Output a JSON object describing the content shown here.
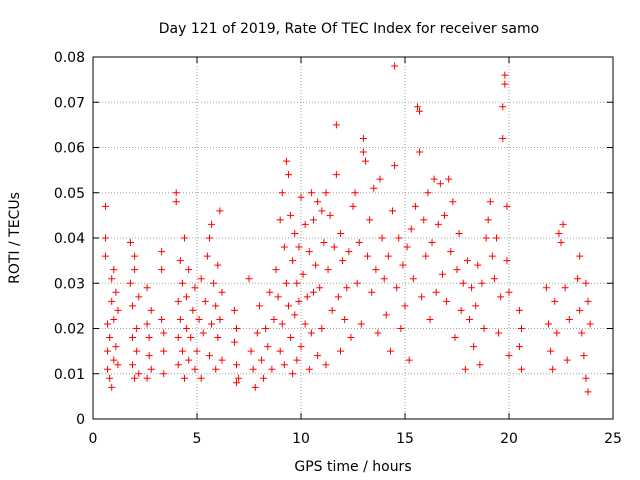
{
  "chart_data": {
    "type": "scatter",
    "title": "Day 121 of 2019, Rate Of TEC Index for receiver samo",
    "xlabel": "GPS time / hours",
    "ylabel": "ROTI / TECUs",
    "xlim": [
      0,
      25
    ],
    "ylim": [
      0,
      0.08
    ],
    "xticks": [
      0,
      5,
      10,
      15,
      20,
      25
    ],
    "xtick_labels": [
      "0",
      "5",
      "10",
      "15",
      "20",
      "25"
    ],
    "yticks": [
      0,
      0.01,
      0.02,
      0.03,
      0.04,
      0.05,
      0.06,
      0.07,
      0.08
    ],
    "ytick_labels": [
      "0",
      "0.01",
      "0.02",
      "0.03",
      "0.04",
      "0.05",
      "0.06",
      "0.07",
      "0.08"
    ],
    "grid": true,
    "marker": "+",
    "color": "#ff0000",
    "series": [
      {
        "name": "ROTI",
        "points": [
          [
            0.6,
            0.047
          ],
          [
            0.6,
            0.04
          ],
          [
            0.6,
            0.036
          ],
          [
            0.7,
            0.021
          ],
          [
            0.7,
            0.015
          ],
          [
            0.7,
            0.011
          ],
          [
            0.8,
            0.009
          ],
          [
            0.8,
            0.018
          ],
          [
            0.9,
            0.026
          ],
          [
            0.9,
            0.031
          ],
          [
            1.0,
            0.033
          ],
          [
            1.0,
            0.022
          ],
          [
            1.0,
            0.013
          ],
          [
            1.1,
            0.016
          ],
          [
            1.1,
            0.028
          ],
          [
            1.2,
            0.024
          ],
          [
            1.2,
            0.012
          ],
          [
            0.9,
            0.007
          ],
          [
            1.8,
            0.039
          ],
          [
            1.8,
            0.03
          ],
          [
            1.9,
            0.025
          ],
          [
            1.9,
            0.018
          ],
          [
            1.9,
            0.012
          ],
          [
            2.0,
            0.009
          ],
          [
            2.0,
            0.036
          ],
          [
            2.1,
            0.02
          ],
          [
            2.1,
            0.015
          ],
          [
            2.2,
            0.027
          ],
          [
            2.2,
            0.01
          ],
          [
            2.0,
            0.033
          ],
          [
            2.6,
            0.029
          ],
          [
            2.6,
            0.021
          ],
          [
            2.7,
            0.018
          ],
          [
            2.7,
            0.014
          ],
          [
            2.8,
            0.011
          ],
          [
            2.8,
            0.024
          ],
          [
            2.6,
            0.009
          ],
          [
            3.3,
            0.022
          ],
          [
            3.3,
            0.037
          ],
          [
            3.4,
            0.015
          ],
          [
            3.4,
            0.01
          ],
          [
            3.3,
            0.033
          ],
          [
            3.4,
            0.019
          ],
          [
            4.0,
            0.05
          ],
          [
            4.0,
            0.048
          ],
          [
            4.1,
            0.026
          ],
          [
            4.1,
            0.018
          ],
          [
            4.1,
            0.012
          ],
          [
            4.2,
            0.035
          ],
          [
            4.2,
            0.022
          ],
          [
            4.3,
            0.03
          ],
          [
            4.3,
            0.015
          ],
          [
            4.4,
            0.04
          ],
          [
            4.4,
            0.009
          ],
          [
            4.5,
            0.027
          ],
          [
            4.5,
            0.02
          ],
          [
            4.6,
            0.033
          ],
          [
            4.6,
            0.013
          ],
          [
            4.7,
            0.018
          ],
          [
            4.8,
            0.024
          ],
          [
            4.9,
            0.011
          ],
          [
            4.9,
            0.029
          ],
          [
            5.0,
            0.015
          ],
          [
            5.1,
            0.022
          ],
          [
            5.2,
            0.031
          ],
          [
            5.2,
            0.009
          ],
          [
            5.3,
            0.019
          ],
          [
            5.4,
            0.026
          ],
          [
            5.5,
            0.036
          ],
          [
            5.6,
            0.04
          ],
          [
            5.6,
            0.014
          ],
          [
            5.7,
            0.043
          ],
          [
            5.7,
            0.021
          ],
          [
            5.8,
            0.03
          ],
          [
            5.9,
            0.025
          ],
          [
            5.9,
            0.011
          ],
          [
            6.0,
            0.034
          ],
          [
            6.0,
            0.018
          ],
          [
            6.1,
            0.046
          ],
          [
            6.1,
            0.022
          ],
          [
            6.2,
            0.013
          ],
          [
            6.2,
            0.028
          ],
          [
            6.8,
            0.024
          ],
          [
            6.8,
            0.017
          ],
          [
            6.9,
            0.012
          ],
          [
            6.9,
            0.02
          ],
          [
            7.0,
            0.009
          ],
          [
            6.9,
            0.008
          ],
          [
            7.5,
            0.031
          ],
          [
            7.6,
            0.015
          ],
          [
            7.7,
            0.011
          ],
          [
            7.8,
            0.007
          ],
          [
            7.9,
            0.019
          ],
          [
            8.0,
            0.025
          ],
          [
            8.1,
            0.013
          ],
          [
            8.2,
            0.009
          ],
          [
            8.3,
            0.02
          ],
          [
            8.4,
            0.016
          ],
          [
            8.5,
            0.028
          ],
          [
            8.6,
            0.011
          ],
          [
            8.7,
            0.022
          ],
          [
            8.8,
            0.033
          ],
          [
            8.9,
            0.027
          ],
          [
            9.0,
            0.044
          ],
          [
            9.0,
            0.015
          ],
          [
            9.1,
            0.05
          ],
          [
            9.1,
            0.021
          ],
          [
            9.2,
            0.038
          ],
          [
            9.2,
            0.012
          ],
          [
            9.3,
            0.057
          ],
          [
            9.3,
            0.03
          ],
          [
            9.4,
            0.054
          ],
          [
            9.4,
            0.025
          ],
          [
            9.5,
            0.045
          ],
          [
            9.5,
            0.018
          ],
          [
            9.6,
            0.035
          ],
          [
            9.6,
            0.01
          ],
          [
            9.7,
            0.041
          ],
          [
            9.7,
            0.023
          ],
          [
            9.8,
            0.03
          ],
          [
            9.8,
            0.013
          ],
          [
            9.9,
            0.026
          ],
          [
            9.9,
            0.038
          ],
          [
            10.0,
            0.049
          ],
          [
            10.0,
            0.016
          ],
          [
            10.1,
            0.032
          ],
          [
            10.2,
            0.043
          ],
          [
            10.2,
            0.021
          ],
          [
            10.3,
            0.027
          ],
          [
            10.4,
            0.037
          ],
          [
            10.4,
            0.011
          ],
          [
            10.5,
            0.05
          ],
          [
            10.5,
            0.019
          ],
          [
            10.6,
            0.044
          ],
          [
            10.6,
            0.028
          ],
          [
            10.7,
            0.034
          ],
          [
            10.8,
            0.048
          ],
          [
            10.8,
            0.014
          ],
          [
            10.9,
            0.029
          ],
          [
            11.0,
            0.046
          ],
          [
            11.0,
            0.02
          ],
          [
            11.1,
            0.039
          ],
          [
            11.2,
            0.05
          ],
          [
            11.2,
            0.012
          ],
          [
            11.3,
            0.033
          ],
          [
            11.4,
            0.045
          ],
          [
            11.5,
            0.024
          ],
          [
            11.6,
            0.038
          ],
          [
            11.7,
            0.054
          ],
          [
            11.7,
            0.065
          ],
          [
            11.8,
            0.027
          ],
          [
            11.9,
            0.041
          ],
          [
            11.9,
            0.015
          ],
          [
            12.0,
            0.035
          ],
          [
            12.1,
            0.022
          ],
          [
            12.2,
            0.029
          ],
          [
            12.3,
            0.037
          ],
          [
            12.4,
            0.018
          ],
          [
            12.5,
            0.047
          ],
          [
            12.6,
            0.05
          ],
          [
            12.7,
            0.03
          ],
          [
            12.8,
            0.039
          ],
          [
            12.9,
            0.021
          ],
          [
            13.0,
            0.062
          ],
          [
            13.0,
            0.059
          ],
          [
            13.1,
            0.057
          ],
          [
            13.2,
            0.036
          ],
          [
            13.3,
            0.044
          ],
          [
            13.4,
            0.028
          ],
          [
            13.5,
            0.051
          ],
          [
            13.6,
            0.033
          ],
          [
            13.7,
            0.019
          ],
          [
            13.8,
            0.053
          ],
          [
            13.9,
            0.04
          ],
          [
            14.0,
            0.031
          ],
          [
            14.1,
            0.023
          ],
          [
            14.2,
            0.036
          ],
          [
            14.3,
            0.015
          ],
          [
            14.4,
            0.046
          ],
          [
            14.5,
            0.056
          ],
          [
            14.5,
            0.078
          ],
          [
            14.6,
            0.029
          ],
          [
            14.7,
            0.04
          ],
          [
            14.8,
            0.02
          ],
          [
            14.9,
            0.034
          ],
          [
            15.0,
            0.025
          ],
          [
            15.1,
            0.038
          ],
          [
            15.2,
            0.013
          ],
          [
            15.3,
            0.042
          ],
          [
            15.4,
            0.031
          ],
          [
            15.5,
            0.047
          ],
          [
            15.6,
            0.069
          ],
          [
            15.7,
            0.068
          ],
          [
            15.7,
            0.059
          ],
          [
            15.8,
            0.027
          ],
          [
            15.9,
            0.044
          ],
          [
            16.0,
            0.036
          ],
          [
            16.1,
            0.05
          ],
          [
            16.2,
            0.022
          ],
          [
            16.3,
            0.039
          ],
          [
            16.4,
            0.053
          ],
          [
            16.5,
            0.028
          ],
          [
            16.6,
            0.043
          ],
          [
            16.7,
            0.052
          ],
          [
            16.8,
            0.032
          ],
          [
            16.9,
            0.045
          ],
          [
            17.0,
            0.026
          ],
          [
            17.1,
            0.053
          ],
          [
            17.2,
            0.037
          ],
          [
            17.3,
            0.048
          ],
          [
            17.4,
            0.018
          ],
          [
            17.5,
            0.033
          ],
          [
            17.6,
            0.041
          ],
          [
            17.7,
            0.024
          ],
          [
            17.8,
            0.03
          ],
          [
            17.9,
            0.011
          ],
          [
            18.0,
            0.035
          ],
          [
            18.1,
            0.022
          ],
          [
            18.2,
            0.029
          ],
          [
            18.3,
            0.016
          ],
          [
            18.4,
            0.025
          ],
          [
            18.5,
            0.034
          ],
          [
            18.6,
            0.012
          ],
          [
            18.7,
            0.03
          ],
          [
            18.8,
            0.02
          ],
          [
            18.9,
            0.04
          ],
          [
            19.0,
            0.044
          ],
          [
            19.1,
            0.048
          ],
          [
            19.2,
            0.036
          ],
          [
            19.3,
            0.031
          ],
          [
            19.4,
            0.04
          ],
          [
            19.5,
            0.019
          ],
          [
            19.6,
            0.027
          ],
          [
            19.7,
            0.062
          ],
          [
            19.7,
            0.069
          ],
          [
            19.8,
            0.076
          ],
          [
            19.8,
            0.074
          ],
          [
            19.9,
            0.047
          ],
          [
            19.9,
            0.035
          ],
          [
            20.0,
            0.028
          ],
          [
            20.0,
            0.014
          ],
          [
            20.5,
            0.024
          ],
          [
            20.5,
            0.016
          ],
          [
            20.6,
            0.011
          ],
          [
            20.6,
            0.02
          ],
          [
            21.8,
            0.029
          ],
          [
            21.9,
            0.021
          ],
          [
            22.0,
            0.015
          ],
          [
            22.1,
            0.011
          ],
          [
            22.2,
            0.026
          ],
          [
            22.3,
            0.019
          ],
          [
            22.4,
            0.041
          ],
          [
            22.5,
            0.039
          ],
          [
            22.6,
            0.043
          ],
          [
            22.7,
            0.029
          ],
          [
            22.8,
            0.013
          ],
          [
            22.9,
            0.022
          ],
          [
            23.3,
            0.031
          ],
          [
            23.4,
            0.036
          ],
          [
            23.4,
            0.024
          ],
          [
            23.5,
            0.019
          ],
          [
            23.6,
            0.014
          ],
          [
            23.7,
            0.03
          ],
          [
            23.7,
            0.009
          ],
          [
            23.8,
            0.026
          ],
          [
            23.8,
            0.006
          ],
          [
            23.9,
            0.021
          ]
        ]
      }
    ]
  }
}
